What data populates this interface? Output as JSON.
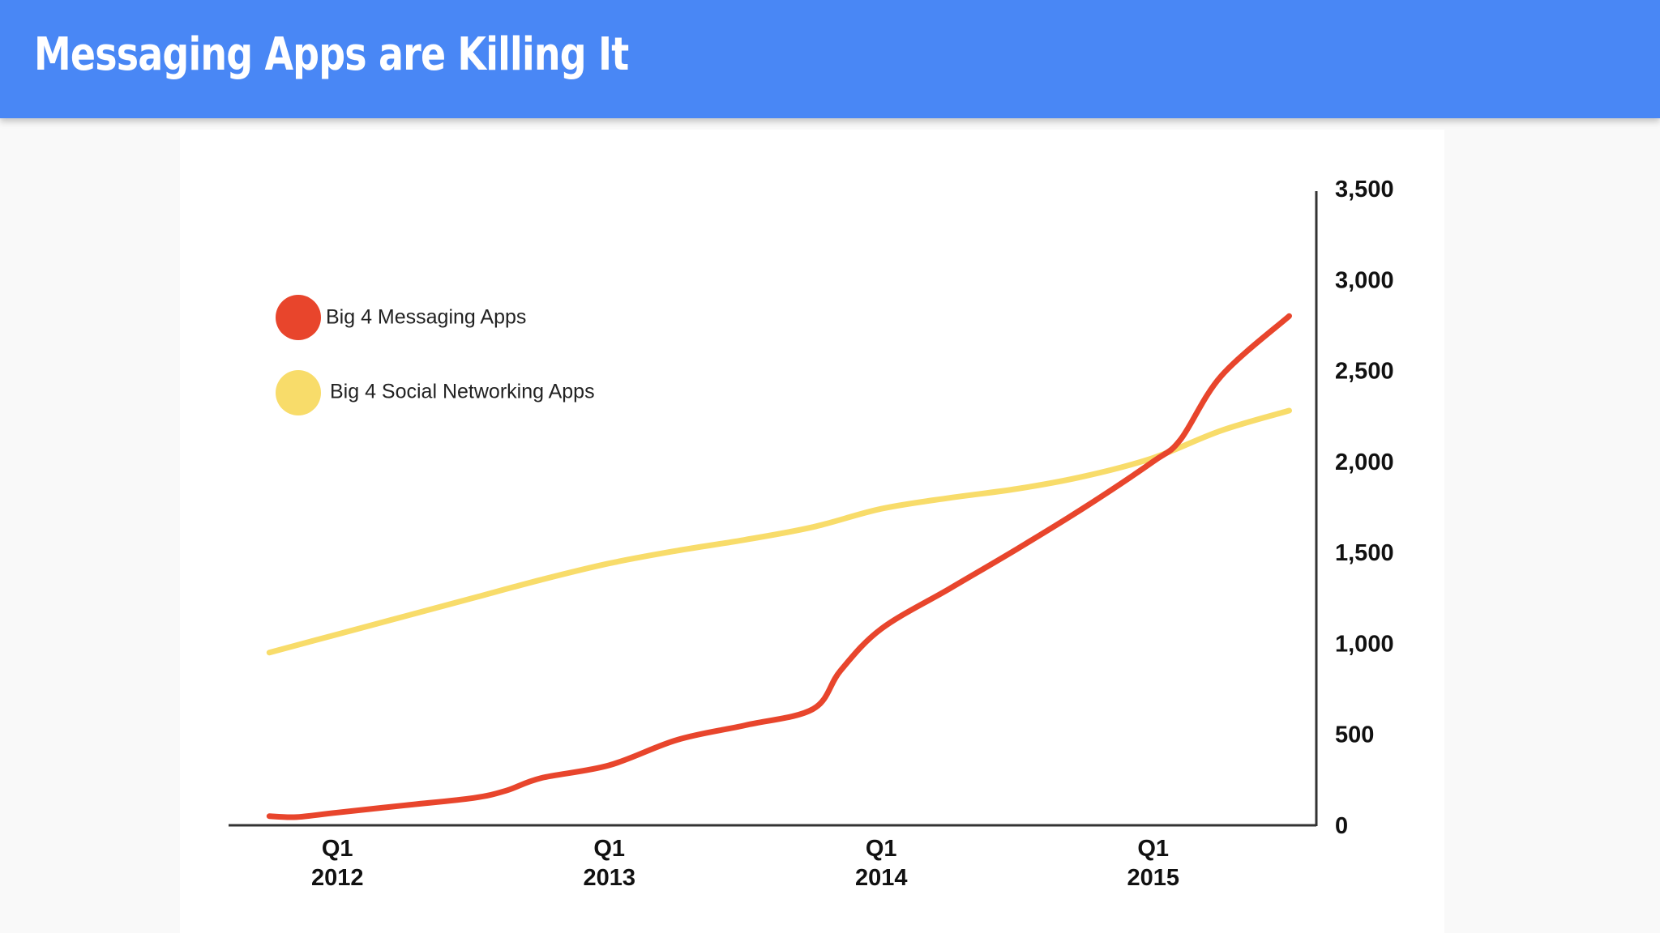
{
  "slide": {
    "title": "Messaging Apps are Killing It"
  },
  "colors": {
    "header": "#4987f5",
    "messaging": "#e8452c",
    "social": "#f8dc6a",
    "axis": "#333333"
  },
  "chart_data": {
    "type": "line",
    "title": "",
    "xlabel": "",
    "ylabel": "",
    "ylim": [
      0,
      3500
    ],
    "y_ticks": [
      {
        "value": 0,
        "label": "0"
      },
      {
        "value": 500,
        "label": "500"
      },
      {
        "value": 1000,
        "label": "1,000"
      },
      {
        "value": 1500,
        "label": "1,500"
      },
      {
        "value": 2000,
        "label": "2,000"
      },
      {
        "value": 2500,
        "label": "2,500"
      },
      {
        "value": 3000,
        "label": "3,000"
      },
      {
        "value": 3500,
        "label": "3,500"
      }
    ],
    "x_range": [
      2011.6,
      2015.6
    ],
    "x_ticks": [
      {
        "value": 2012.0,
        "label_top": "Q1",
        "label_bottom": "2012"
      },
      {
        "value": 2013.0,
        "label_top": "Q1",
        "label_bottom": "2013"
      },
      {
        "value": 2014.0,
        "label_top": "Q1",
        "label_bottom": "2014"
      },
      {
        "value": 2015.0,
        "label_top": "Q1",
        "label_bottom": "2015"
      }
    ],
    "axis_position": "right",
    "grid": false,
    "legend_position": "top-left",
    "series": [
      {
        "name": "Big 4 Messaging Apps",
        "color": "#e8452c",
        "points": [
          [
            2011.75,
            50
          ],
          [
            2011.85,
            45
          ],
          [
            2012.0,
            70
          ],
          [
            2012.25,
            110
          ],
          [
            2012.5,
            150
          ],
          [
            2012.62,
            190
          ],
          [
            2012.75,
            260
          ],
          [
            2013.0,
            330
          ],
          [
            2013.25,
            470
          ],
          [
            2013.5,
            550
          ],
          [
            2013.75,
            640
          ],
          [
            2013.85,
            850
          ],
          [
            2014.0,
            1080
          ],
          [
            2014.25,
            1300
          ],
          [
            2014.5,
            1520
          ],
          [
            2014.75,
            1750
          ],
          [
            2015.0,
            2000
          ],
          [
            2015.1,
            2120
          ],
          [
            2015.25,
            2470
          ],
          [
            2015.5,
            2800
          ]
        ]
      },
      {
        "name": "Big 4 Social Networking Apps",
        "color": "#f8dc6a",
        "points": [
          [
            2011.75,
            950
          ],
          [
            2012.0,
            1050
          ],
          [
            2012.25,
            1150
          ],
          [
            2012.5,
            1250
          ],
          [
            2012.75,
            1350
          ],
          [
            2013.0,
            1440
          ],
          [
            2013.25,
            1510
          ],
          [
            2013.5,
            1570
          ],
          [
            2013.75,
            1640
          ],
          [
            2014.0,
            1740
          ],
          [
            2014.25,
            1800
          ],
          [
            2014.5,
            1850
          ],
          [
            2014.75,
            1920
          ],
          [
            2015.0,
            2020
          ],
          [
            2015.25,
            2170
          ],
          [
            2015.5,
            2280
          ]
        ]
      }
    ]
  }
}
